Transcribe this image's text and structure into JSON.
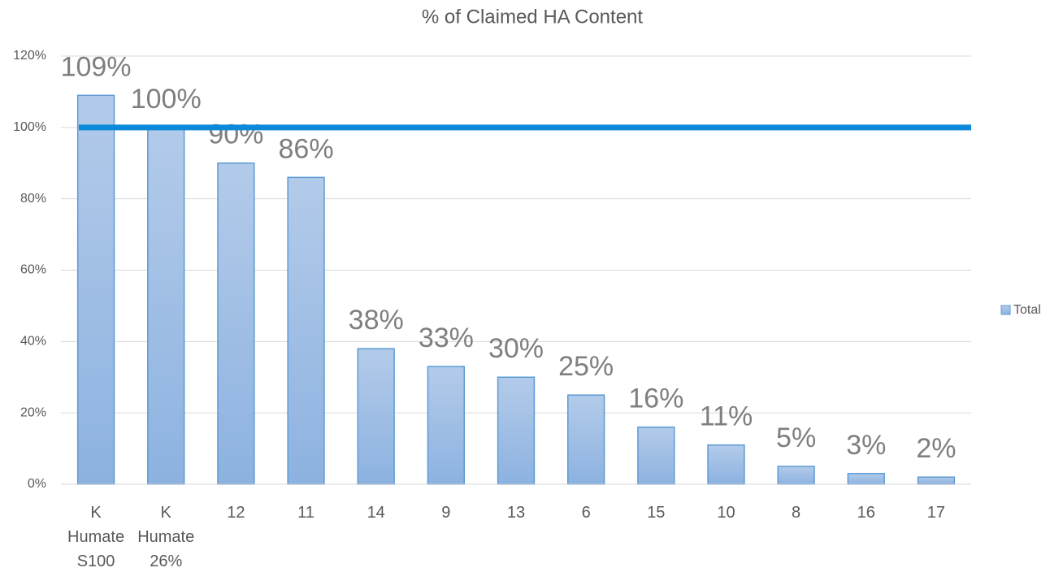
{
  "chart_data": {
    "type": "bar",
    "title": "% of Claimed HA Content",
    "categories": [
      "K Humate S100",
      "K Humate 26%",
      "12",
      "11",
      "14",
      "9",
      "13",
      "6",
      "15",
      "10",
      "8",
      "16",
      "17"
    ],
    "series": [
      {
        "name": "Total",
        "color": "#5b9bd5",
        "values": [
          109,
          100,
          90,
          86,
          38,
          33,
          30,
          25,
          16,
          11,
          5,
          3,
          2
        ],
        "value_labels": [
          "109%",
          "100%",
          "90%",
          "86%",
          "38%",
          "33%",
          "30%",
          "25%",
          "16%",
          "11%",
          "5%",
          "3%",
          "2%"
        ]
      }
    ],
    "ylim": [
      0,
      120
    ],
    "yticks": [
      {
        "value": 0,
        "label": "0%"
      },
      {
        "value": 20,
        "label": "20%"
      },
      {
        "value": 40,
        "label": "40%"
      },
      {
        "value": 60,
        "label": "60%"
      },
      {
        "value": 80,
        "label": "80%"
      },
      {
        "value": 100,
        "label": "100%"
      },
      {
        "value": 120,
        "label": "120%"
      }
    ],
    "grid": true,
    "legend": "right",
    "reference_line": {
      "value": 100,
      "color": "#0a8ad8"
    }
  }
}
